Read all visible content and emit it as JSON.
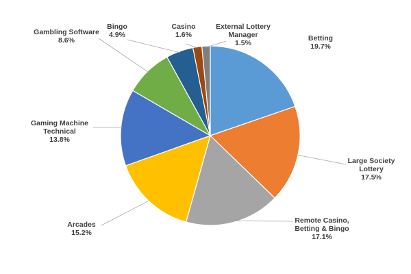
{
  "chart_data": {
    "type": "pie",
    "title": "",
    "legend": "none",
    "data_labels": "category-and-percent",
    "slices": [
      {
        "label_lines": [
          "Betting"
        ],
        "value": 19.7,
        "value_label": "19.7%",
        "color": "#5B9BD5"
      },
      {
        "label_lines": [
          "Large Society",
          "Lottery"
        ],
        "value": 17.5,
        "value_label": "17.5%",
        "color": "#ED7D31"
      },
      {
        "label_lines": [
          "Remote Casino,",
          "Betting & Bingo"
        ],
        "value": 17.1,
        "value_label": "17.1%",
        "color": "#A5A5A5"
      },
      {
        "label_lines": [
          "Arcades"
        ],
        "value": 15.2,
        "value_label": "15.2%",
        "color": "#FFC000"
      },
      {
        "label_lines": [
          "Gaming Machine",
          "Technical"
        ],
        "value": 13.8,
        "value_label": "13.8%",
        "color": "#4472C4"
      },
      {
        "label_lines": [
          "Gambling Software"
        ],
        "value": 8.6,
        "value_label": "8.6%",
        "color": "#70AD47"
      },
      {
        "label_lines": [
          "Bingo"
        ],
        "value": 4.9,
        "value_label": "4.9%",
        "color": "#255E91"
      },
      {
        "label_lines": [
          "Casino"
        ],
        "value": 1.6,
        "value_label": "1.6%",
        "color": "#9E480E"
      },
      {
        "label_lines": [
          "External Lottery",
          "Manager"
        ],
        "value": 1.5,
        "value_label": "1.5%",
        "color": "#7F7F7F"
      }
    ]
  }
}
